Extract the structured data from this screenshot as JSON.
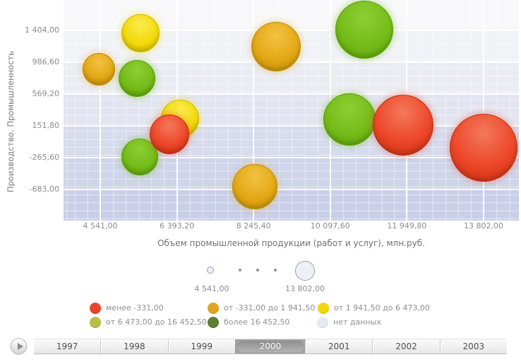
{
  "chart_data": {
    "type": "scatter",
    "subtype": "bubble",
    "title": "",
    "xlabel": "Объем  промышленной продукции (работ и услуг), млн.руб.",
    "ylabel": "Производство. Промышленность",
    "xlim": [
      3650,
      14660
    ],
    "ylim": [
      -1090,
      1800
    ],
    "grid": "on",
    "x_ticks": [
      {
        "label": "4 541,00",
        "value": 4541.0
      },
      {
        "label": "6 393,20",
        "value": 6393.2
      },
      {
        "label": "8 245,40",
        "value": 8245.4
      },
      {
        "label": "10 097,60",
        "value": 10097.6
      },
      {
        "label": "11 949,80",
        "value": 11949.8
      },
      {
        "label": "13 802,00",
        "value": 13802.0
      }
    ],
    "y_ticks": [
      {
        "label": "1 404,00",
        "value": 1404.0
      },
      {
        "label": "986,60",
        "value": 986.6
      },
      {
        "label": "569,20",
        "value": 569.2
      },
      {
        "label": "151,80",
        "value": 151.8
      },
      {
        "label": "-265,60",
        "value": -265.6
      },
      {
        "label": "-683,00",
        "value": -683.0
      }
    ],
    "points": [
      {
        "x": 4507,
        "y": 895,
        "r": 23,
        "color": "orange"
      },
      {
        "x": 5428,
        "y": 773,
        "r": 26,
        "color": "green"
      },
      {
        "x": 5513,
        "y": 1367,
        "r": 27,
        "color": "yellow"
      },
      {
        "x": 6469,
        "y": 244,
        "r": 27,
        "color": "yellow"
      },
      {
        "x": 5496,
        "y": -256,
        "r": 26,
        "color": "green"
      },
      {
        "x": 6213,
        "y": 40,
        "r": 28,
        "color": "red"
      },
      {
        "x": 8277,
        "y": -646,
        "r": 32,
        "color": "orange"
      },
      {
        "x": 8789,
        "y": 1191,
        "r": 35,
        "color": "orange"
      },
      {
        "x": 10921,
        "y": 1413,
        "r": 41,
        "color": "green"
      },
      {
        "x": 10563,
        "y": 235,
        "r": 37,
        "color": "green"
      },
      {
        "x": 11859,
        "y": 161,
        "r": 43,
        "color": "red"
      },
      {
        "x": 13803,
        "y": -136,
        "r": 48,
        "color": "red"
      }
    ],
    "palette": {
      "red": {
        "light": "#f4785b",
        "base": "#ec4527",
        "dark": "#c52c0e",
        "glow": "rgba(236,69,39,0.35)"
      },
      "orange": {
        "light": "#f2c242",
        "base": "#e3a715",
        "dark": "#bf8a02",
        "glow": "rgba(227,167,21,0.35)"
      },
      "yellow": {
        "light": "#f9ec4e",
        "base": "#f2d908",
        "dark": "#cdb900",
        "glow": "rgba(242,217,8,0.4)"
      },
      "green": {
        "light": "#8ccf33",
        "base": "#74bb18",
        "dark": "#57a006",
        "glow": "rgba(116,187,24,0.4)"
      }
    },
    "size_legend": {
      "min_label": "4 541,00",
      "max_label": "13 802,00"
    },
    "color_legend": [
      {
        "color": "#e8432c",
        "label": "менее -331,00"
      },
      {
        "color": "#e2a41f",
        "label": "от -331,00 до 1 941,50"
      },
      {
        "color": "#f2d70c",
        "label": "от 1 941,50 до 6 473,00"
      },
      {
        "color": "#b9bf45",
        "label": "от 6 473,00 до 16 452,50"
      },
      {
        "color": "#5d7e35",
        "label": "более 16 452,50"
      },
      {
        "color": "#e7ebf1",
        "label": "нет данных"
      }
    ]
  },
  "timeline": {
    "years": [
      "1997",
      "1998",
      "1999",
      "2000",
      "2001",
      "2002",
      "2003"
    ],
    "selected": "2000"
  }
}
